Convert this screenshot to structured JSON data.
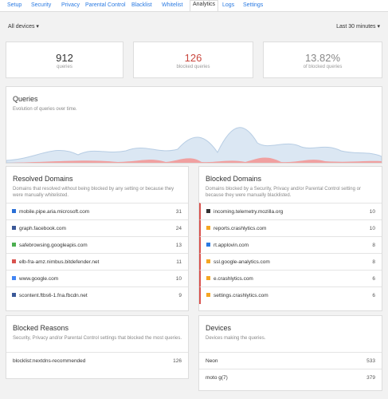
{
  "nav": {
    "tabs": [
      "Setup",
      "Security",
      "Privacy",
      "Parental Control",
      "Blacklist",
      "Whitelist",
      "Analytics",
      "Logs",
      "Settings"
    ],
    "active": "Analytics"
  },
  "filters": {
    "device": "All devices",
    "range": "Last 30 minutes"
  },
  "stats": [
    {
      "value": "912",
      "label": "queries"
    },
    {
      "value": "126",
      "label": "blocked queries"
    },
    {
      "value": "13.82%",
      "label": "of blocked queries"
    }
  ],
  "queries": {
    "title": "Queries",
    "subtitle": "Evolution of queries over time."
  },
  "resolved": {
    "title": "Resolved Domains",
    "subtitle": "Domains that resolved without being blocked by any setting or because they were manually whitelisted.",
    "rows": [
      [
        "mobile.pipe.aria.microsoft.com",
        "31"
      ],
      [
        "graph.facebook.com",
        "24"
      ],
      [
        "safebrowsing.googleapis.com",
        "13"
      ],
      [
        "elb-fra-amz.nimbus.bitdefender.net",
        "11"
      ],
      [
        "www.google.com",
        "10"
      ],
      [
        "scontent.ftbs6-1.fna.fbcdn.net",
        "9"
      ]
    ]
  },
  "blocked": {
    "title": "Blocked Domains",
    "subtitle": "Domains blocked by a Security, Privacy and/or Parental Control setting or because they were manually blacklisted.",
    "rows": [
      [
        "incoming.telemetry.mozilla.org",
        "10"
      ],
      [
        "reports.crashlytics.com",
        "10"
      ],
      [
        "rt.applovin.com",
        "8"
      ],
      [
        "ssl.google-analytics.com",
        "8"
      ],
      [
        "e.crashlytics.com",
        "6"
      ],
      [
        "settings.crashlytics.com",
        "6"
      ]
    ]
  },
  "reasons": {
    "title": "Blocked Reasons",
    "subtitle": "Security, Privacy and/or Parental Control settings that blocked the most queries.",
    "rows": [
      [
        "blocklist:nextdns-recommended",
        "126"
      ]
    ]
  },
  "devices": {
    "title": "Devices",
    "subtitle": "Devices making the queries.",
    "rows": [
      [
        "Neon",
        "533"
      ],
      [
        "moto g(7)",
        "379"
      ]
    ]
  }
}
